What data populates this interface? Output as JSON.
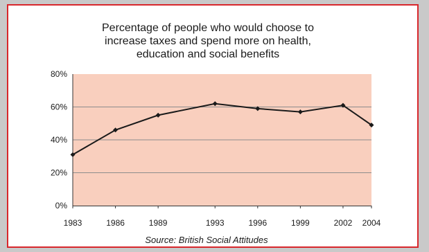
{
  "chart_data": {
    "type": "line",
    "title_lines": [
      "Percentage of people who would choose to",
      "increase taxes and spend more on health,",
      "education and social benefits"
    ],
    "source": "Source:  British Social Attitudes",
    "x": [
      1983,
      1986,
      1989,
      1993,
      1996,
      1999,
      2002,
      2004
    ],
    "x_tick_labels": [
      "1983",
      "1986",
      "1989",
      "1993",
      "1996",
      "1999",
      "2002",
      "2004"
    ],
    "values": [
      31,
      46,
      55,
      62,
      59,
      57,
      61,
      49
    ],
    "y_ticks": [
      "0%",
      "20%",
      "40%",
      "60%",
      "80%"
    ],
    "ylim": [
      0,
      80
    ],
    "grid": true,
    "legend": "none",
    "colors": {
      "plot_background": "#f9cfbe",
      "line": "#1a1a1a",
      "frame_border": "#d8262b",
      "gridline": "#8c8c8c"
    }
  }
}
